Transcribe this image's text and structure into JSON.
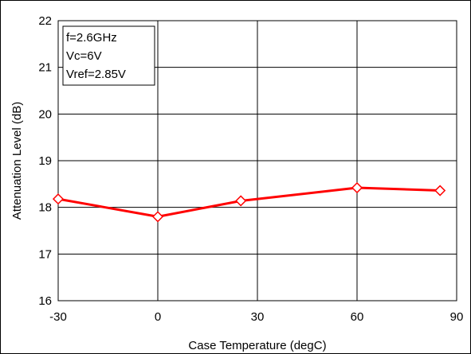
{
  "chart_data": {
    "type": "line",
    "title": "",
    "xlabel": "Case Temperature (degC)",
    "ylabel": "Attenuation Level (dB)",
    "xlim": [
      -30,
      90
    ],
    "ylim": [
      16,
      22
    ],
    "xticks": [
      -30,
      0,
      30,
      60,
      90
    ],
    "yticks": [
      16,
      17,
      18,
      19,
      20,
      21,
      22
    ],
    "grid": true,
    "annotation": [
      "f=2.6GHz",
      "Vc=6V",
      "Vref=2.85V"
    ],
    "series": [
      {
        "x": [
          -30,
          0,
          25,
          60,
          85
        ],
        "y": [
          18.18,
          17.8,
          18.14,
          18.42,
          18.36
        ],
        "color": "#ff0000",
        "marker": "diamond-open"
      }
    ]
  }
}
